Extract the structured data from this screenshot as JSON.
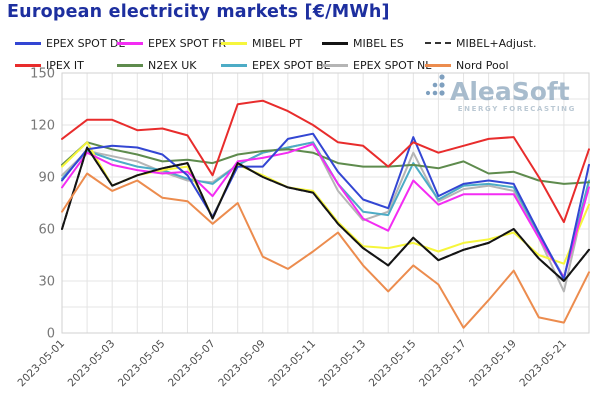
{
  "chart_data": {
    "type": "line",
    "title": "European electricity markets [€/MWh]",
    "xlabel": "",
    "ylabel": "",
    "ylim": [
      0,
      150
    ],
    "y_ticks": [
      0,
      30,
      60,
      90,
      120,
      150
    ],
    "y_minor_step": 15,
    "grid": true,
    "legend_position": "top",
    "x": [
      "2023-05-01",
      "2023-05-02",
      "2023-05-03",
      "2023-05-04",
      "2023-05-05",
      "2023-05-06",
      "2023-05-07",
      "2023-05-08",
      "2023-05-09",
      "2023-05-10",
      "2023-05-11",
      "2023-05-12",
      "2023-05-13",
      "2023-05-14",
      "2023-05-15",
      "2023-05-16",
      "2023-05-17",
      "2023-05-18",
      "2023-05-19",
      "2023-05-20",
      "2023-05-21",
      "2023-05-22"
    ],
    "x_labeled_every": 2,
    "series": [
      {
        "name": "EPEX SPOT DE",
        "color": "#3346d3",
        "dash": null,
        "values": [
          88,
          106,
          108,
          107,
          103,
          91,
          67,
          96,
          96,
          112,
          115,
          93,
          77,
          72,
          113,
          79,
          86,
          88,
          86,
          58,
          31,
          97
        ]
      },
      {
        "name": "EPEX SPOT FR",
        "color": "#f32cf3",
        "dash": null,
        "values": [
          84,
          104,
          97,
          94,
          92,
          93,
          79,
          99,
          101,
          104,
          109,
          86,
          66,
          59,
          88,
          74,
          80,
          80,
          80,
          55,
          32,
          84
        ]
      },
      {
        "name": "MIBEL PT",
        "color": "#f6f63c",
        "dash": null,
        "values": [
          96,
          110,
          85,
          91,
          94,
          96,
          67,
          97,
          91,
          84,
          82,
          64,
          50,
          49,
          52,
          47,
          52,
          54,
          58,
          45,
          40,
          74
        ]
      },
      {
        "name": "MIBEL ES",
        "color": "#141414",
        "dash": null,
        "values": [
          60,
          107,
          85,
          91,
          95,
          98,
          66,
          98,
          90,
          84,
          81,
          63,
          49,
          39,
          55,
          42,
          48,
          52,
          60,
          43,
          30,
          48
        ]
      },
      {
        "name": "MIBEL+Adjust.",
        "color": "#333333",
        "dash": "6,5",
        "values": [
          60,
          107,
          85,
          91,
          95,
          98,
          66,
          98,
          90,
          84,
          81,
          63,
          49,
          39,
          55,
          42,
          48,
          52,
          60,
          43,
          30,
          48
        ]
      },
      {
        "name": "IPEX IT",
        "color": "#e82c2c",
        "dash": null,
        "values": [
          112,
          123,
          123,
          117,
          118,
          114,
          91,
          132,
          134,
          128,
          120,
          110,
          108,
          96,
          110,
          104,
          108,
          112,
          113,
          90,
          64,
          106
        ]
      },
      {
        "name": "N2EX UK",
        "color": "#5e8b4d",
        "dash": null,
        "values": [
          97,
          110,
          106,
          103,
          99,
          100,
          98,
          103,
          105,
          106,
          104,
          98,
          96,
          96,
          97,
          95,
          99,
          92,
          93,
          88,
          86,
          87
        ]
      },
      {
        "name": "EPEX SPOT BE",
        "color": "#4dacc6",
        "dash": null,
        "values": [
          89,
          105,
          100,
          96,
          94,
          89,
          86,
          97,
          104,
          107,
          110,
          86,
          70,
          68,
          98,
          77,
          85,
          86,
          84,
          57,
          32,
          88
        ]
      },
      {
        "name": "EPEX SPOT NL",
        "color": "#b5b5b5",
        "dash": null,
        "values": [
          91,
          105,
          102,
          99,
          93,
          88,
          87,
          97,
          104,
          107,
          110,
          82,
          65,
          70,
          104,
          76,
          83,
          85,
          82,
          55,
          24,
          87
        ]
      },
      {
        "name": "Nord Pool",
        "color": "#ec8c4e",
        "dash": null,
        "values": [
          70,
          92,
          82,
          88,
          78,
          76,
          63,
          75,
          44,
          37,
          47,
          58,
          39,
          24,
          39,
          28,
          3,
          19,
          36,
          9,
          6,
          35
        ]
      }
    ],
    "legend_rows": [
      [
        "EPEX SPOT DE",
        "EPEX SPOT FR",
        "MIBEL PT",
        "MIBEL ES",
        "MIBEL+Adjust."
      ],
      [
        "IPEX IT",
        "N2EX UK",
        "EPEX SPOT BE",
        "EPEX SPOT NL",
        "Nord Pool"
      ]
    ],
    "draw_order": [
      "MIBEL+Adjust.",
      "EPEX SPOT NL",
      "EPEX SPOT BE",
      "N2EX UK",
      "MIBEL PT",
      "EPEX SPOT FR",
      "EPEX SPOT DE",
      "MIBEL ES",
      "Nord Pool",
      "IPEX IT"
    ],
    "watermark": {
      "brand": "AleaSoft",
      "tagline": "ENERGY FORECASTING"
    }
  },
  "style_colors": {
    "title": "#1d2f9f",
    "grid_line": "#e4e4e4",
    "plot_border": "#d2d2d2",
    "axis_line": "#bdbdbd",
    "y_tick_label": "#777777",
    "x_tick_label": "#4d4d4d",
    "legend_text": "#1a1a1a",
    "watermark_dots": "#6e93b7",
    "watermark_brand": "#9db3c7",
    "watermark_tagline": "#b2c2cf"
  }
}
